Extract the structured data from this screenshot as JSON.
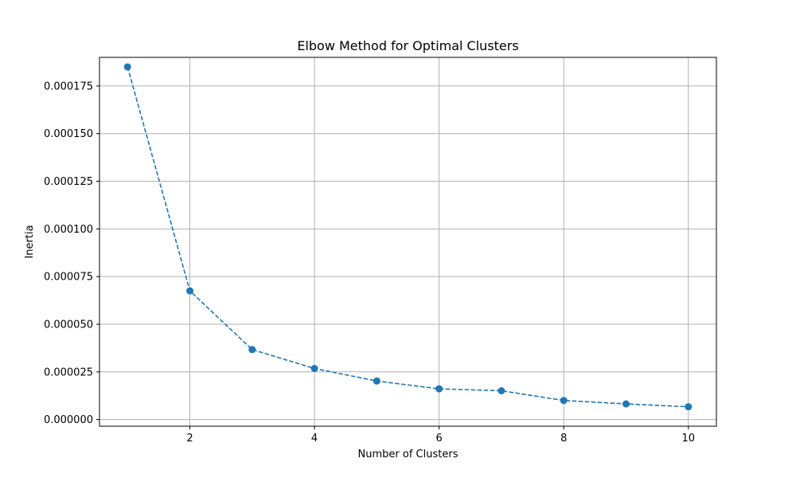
{
  "chart_data": {
    "type": "line",
    "title": "Elbow Method for Optimal Clusters",
    "xlabel": "Number of Clusters",
    "ylabel": "Inertia",
    "x": [
      1,
      2,
      3,
      4,
      5,
      6,
      7,
      8,
      9,
      10
    ],
    "series": [
      {
        "values": [
          0.000185,
          6.75e-05,
          3.67e-05,
          2.68e-05,
          2.02e-05,
          1.61e-05,
          1.51e-05,
          1e-05,
          8.2e-06,
          6.7e-06
        ],
        "color": "#1f77b4",
        "line_style": "dashed",
        "marker": "circle"
      }
    ],
    "xlim": [
      0.55,
      10.45
    ],
    "ylim": [
      -3.5e-06,
      0.00019
    ],
    "x_ticks": [
      2,
      4,
      6,
      8,
      10
    ],
    "x_tick_labels": [
      "2",
      "4",
      "6",
      "8",
      "10"
    ],
    "y_ticks": [
      0.0,
      2.5e-05,
      5e-05,
      7.5e-05,
      0.0001,
      0.000125,
      0.00015,
      0.000175
    ],
    "y_tick_labels": [
      "0.000000",
      "0.000025",
      "0.000050",
      "0.000075",
      "0.000100",
      "0.000125",
      "0.000150",
      "0.000175"
    ],
    "grid": true,
    "grid_color": "#b0b0b0"
  }
}
